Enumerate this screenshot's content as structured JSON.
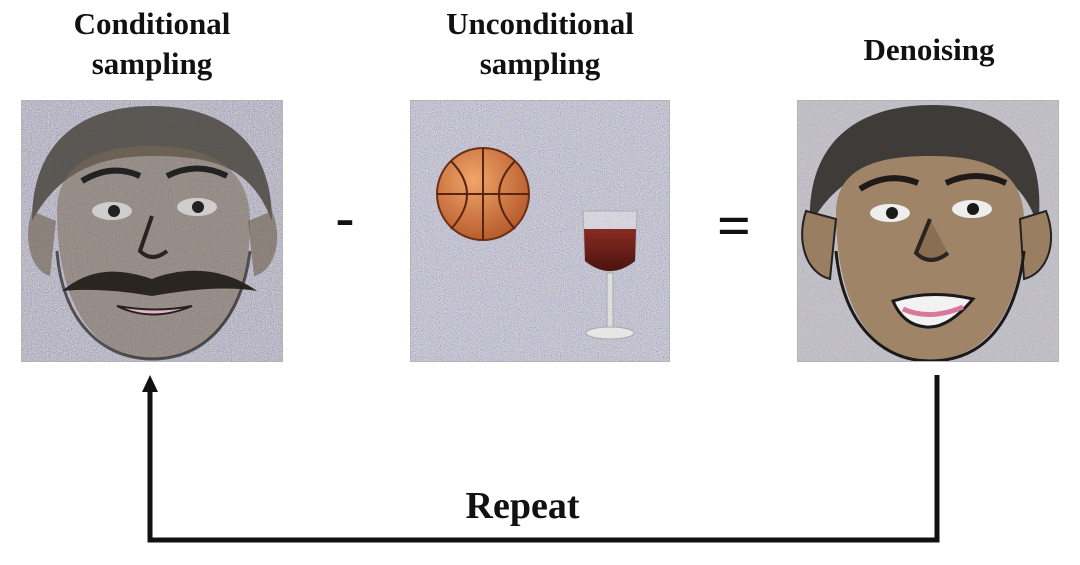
{
  "labels": {
    "conditional": "Conditional\nsampling",
    "unconditional": "Unconditional\nsampling",
    "denoising": "Denoising"
  },
  "operators": {
    "minus": "-",
    "equals": "="
  },
  "loop_label": "Repeat",
  "images": {
    "conditional": "noisy-face-with-mustache",
    "unconditional": "noisy-basketball-and-wine-glass",
    "denoising": "cleaner-face"
  }
}
